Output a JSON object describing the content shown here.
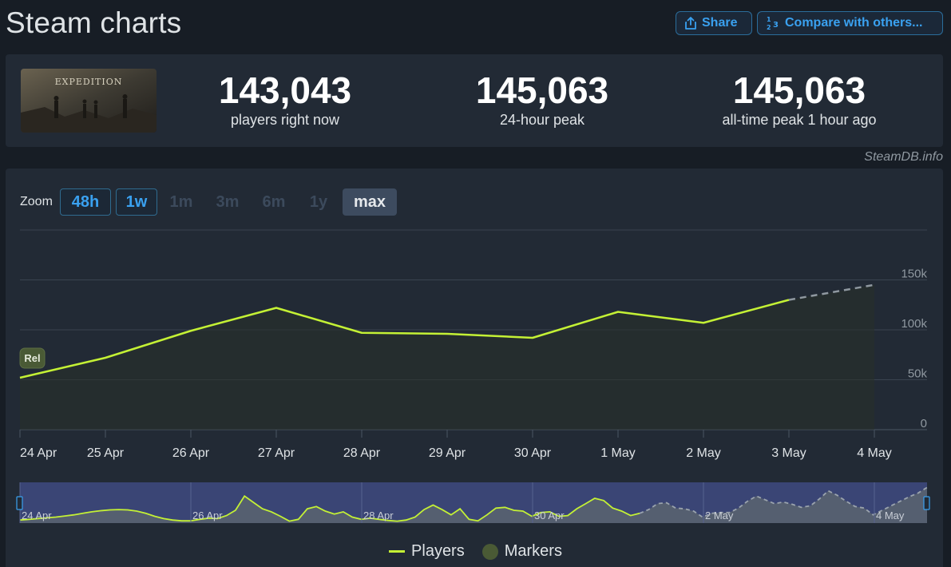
{
  "header": {
    "title": "Steam charts",
    "share_label": "Share",
    "compare_label": "Compare with others..."
  },
  "stats": [
    {
      "value": "143,043",
      "label": "players right now"
    },
    {
      "value": "145,063",
      "label": "24-hour peak"
    },
    {
      "value": "145,063",
      "label": "all-time peak 1 hour ago"
    }
  ],
  "game": {
    "cover_text": "EXPEDITION"
  },
  "brand": "SteamDB.info",
  "zoom": {
    "label": "Zoom",
    "buttons": [
      {
        "label": "48h",
        "state": "enabled"
      },
      {
        "label": "1w",
        "state": "enabled"
      },
      {
        "label": "1m",
        "state": "disabled"
      },
      {
        "label": "3m",
        "state": "disabled"
      },
      {
        "label": "6m",
        "state": "disabled"
      },
      {
        "label": "1y",
        "state": "disabled"
      },
      {
        "label": "max",
        "state": "selected"
      }
    ]
  },
  "colors": {
    "players": "#c4f135",
    "marker": "#4a5a35",
    "forecast": "#8f98a0"
  },
  "chart_data": {
    "type": "line",
    "y_ticks": [
      "0",
      "50k",
      "100k",
      "150k"
    ],
    "y_tick_values": [
      0,
      50000,
      100000,
      150000
    ],
    "ylim": [
      0,
      200000
    ],
    "x_tick_labels": [
      "24 Apr",
      "25 Apr",
      "26 Apr",
      "27 Apr",
      "28 Apr",
      "29 Apr",
      "30 Apr",
      "1 May",
      "2 May",
      "3 May",
      "4 May"
    ],
    "series": [
      {
        "name": "Players",
        "x": [
          "24 Apr",
          "25 Apr",
          "26 Apr",
          "27 Apr",
          "28 Apr",
          "29 Apr",
          "30 Apr",
          "1 May",
          "2 May",
          "3 May"
        ],
        "values": [
          52000,
          72000,
          99000,
          122000,
          97000,
          96000,
          92000,
          118000,
          107000,
          130000
        ]
      }
    ],
    "forecast": {
      "x": [
        "3 May",
        "4 May"
      ],
      "values": [
        130000,
        145063
      ]
    },
    "markers": [
      {
        "x": "24 Apr",
        "label": "Rel"
      }
    ],
    "navigator": {
      "x_tick_labels": [
        "24 Apr",
        "26 Apr",
        "28 Apr",
        "30 Apr",
        "2 May",
        "4 May"
      ],
      "values": [
        0.08,
        0.1,
        0.12,
        0.14,
        0.16,
        0.19,
        0.22,
        0.26,
        0.3,
        0.33,
        0.35,
        0.36,
        0.35,
        0.32,
        0.26,
        0.18,
        0.12,
        0.08,
        0.06,
        0.06,
        0.1,
        0.13,
        0.12,
        0.2,
        0.34,
        0.72,
        0.55,
        0.38,
        0.3,
        0.18,
        0.05,
        0.1,
        0.38,
        0.44,
        0.32,
        0.24,
        0.3,
        0.16,
        0.1,
        0.13,
        0.1,
        0.07,
        0.05,
        0.08,
        0.16,
        0.36,
        0.48,
        0.36,
        0.22,
        0.38,
        0.1,
        0.06,
        0.22,
        0.4,
        0.42,
        0.34,
        0.32,
        0.18,
        0.28,
        0.3,
        0.18,
        0.2,
        0.38,
        0.52,
        0.66,
        0.6,
        0.4,
        0.32,
        0.2,
        0.26,
        0.36,
        0.52,
        0.54,
        0.4,
        0.38,
        0.32,
        0.16,
        0.26,
        0.28,
        0.28,
        0.4,
        0.58,
        0.72,
        0.62,
        0.52,
        0.56,
        0.5,
        0.42,
        0.46,
        0.64,
        0.86,
        0.74,
        0.58,
        0.44,
        0.4,
        0.22,
        0.34,
        0.46,
        0.58,
        0.7,
        0.8,
        0.95
      ],
      "forecast_from_index": 69
    }
  },
  "legend": {
    "players_label": "Players",
    "markers_label": "Markers"
  }
}
